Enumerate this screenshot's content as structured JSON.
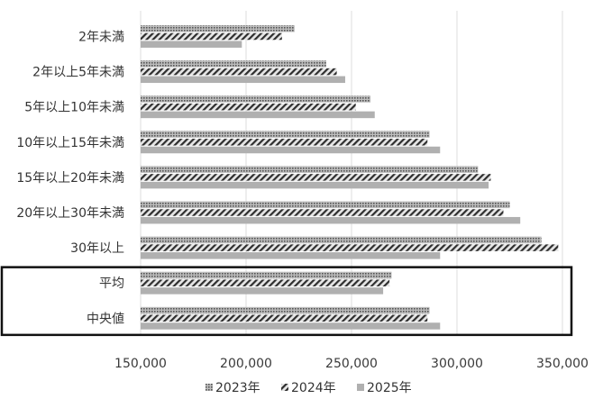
{
  "chart_data": {
    "type": "bar",
    "orientation": "horizontal",
    "title": "",
    "xlabel": "",
    "ylabel": "",
    "xlim": [
      150000,
      350000
    ],
    "ticks": [
      150000,
      200000,
      250000,
      300000,
      350000
    ],
    "tick_labels": [
      "150,000",
      "200,000",
      "250,000",
      "300,000",
      "350,000"
    ],
    "grid": true,
    "legend_position": "bottom",
    "categories": [
      "2年未満",
      "2年以上5年未満",
      "5年以上10年未満",
      "10年以上15年未満",
      "15年以上20年未満",
      "20年以上30年未満",
      "30年以上",
      "平均",
      "中央値"
    ],
    "series": [
      {
        "name": "2023年",
        "color": "#8c8c8c",
        "pattern": "dots",
        "values": [
          223000,
          238000,
          259000,
          287000,
          310000,
          325000,
          340000,
          269000,
          287000
        ]
      },
      {
        "name": "2024年",
        "color": "#333333",
        "pattern": "diagonal",
        "values": [
          217000,
          243000,
          252000,
          286000,
          316000,
          322000,
          348000,
          268000,
          286000
        ]
      },
      {
        "name": "2025年",
        "color": "#b0b0b0",
        "pattern": "solid",
        "values": [
          198000,
          247000,
          261000,
          292000,
          315000,
          330000,
          292000,
          265000,
          292000
        ]
      }
    ],
    "highlight_box": {
      "categories": [
        "平均",
        "中央値"
      ]
    }
  }
}
